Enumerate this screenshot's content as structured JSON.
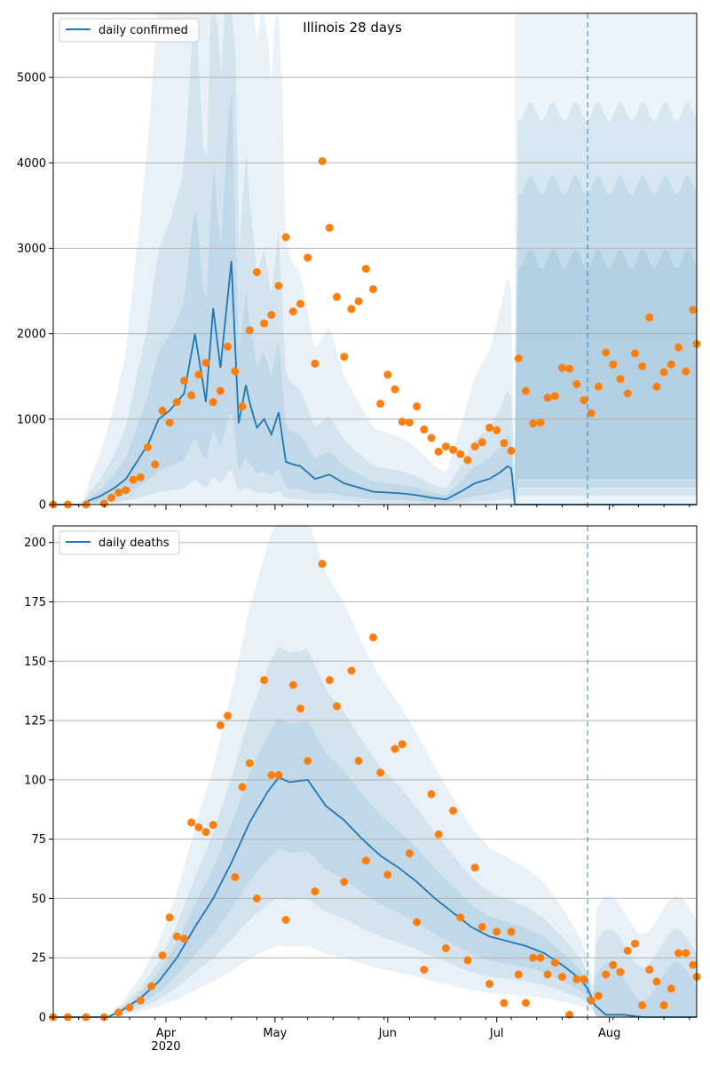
{
  "chart_data": [
    {
      "type": "line",
      "title": "Illinois 28 days",
      "xlabel": "",
      "ylabel": "",
      "legend": {
        "position": "top-left",
        "entries": [
          "daily confirmed"
        ]
      },
      "grid": "y",
      "x_start": "2020-03-01",
      "x_end": "2020-08-25",
      "ylim": [
        0,
        5750
      ],
      "yticks": [
        0,
        1000,
        2000,
        3000,
        4000,
        5000
      ],
      "x_major_ticks": [
        {
          "date": "2020-04-01",
          "label": "Apr",
          "sublabel": "2020"
        },
        {
          "date": "2020-05-01",
          "label": "May"
        },
        {
          "date": "2020-06-01",
          "label": "Jun"
        },
        {
          "date": "2020-07-01",
          "label": "Jul"
        },
        {
          "date": "2020-08-01",
          "label": "Aug"
        }
      ],
      "forecast_start": "2020-07-06",
      "vline_date": "2020-07-26",
      "series": [
        {
          "name": "daily confirmed",
          "kind": "line",
          "color": "#1f77b4",
          "x": [
            "2020-03-01",
            "2020-03-06",
            "2020-03-09",
            "2020-03-11",
            "2020-03-14",
            "2020-03-18",
            "2020-03-21",
            "2020-03-24",
            "2020-03-27",
            "2020-03-30",
            "2020-04-02",
            "2020-04-06",
            "2020-04-09",
            "2020-04-12",
            "2020-04-14",
            "2020-04-16",
            "2020-04-19",
            "2020-04-21",
            "2020-04-23",
            "2020-04-24",
            "2020-04-26",
            "2020-04-28",
            "2020-04-30",
            "2020-05-02",
            "2020-05-04",
            "2020-05-06",
            "2020-05-08",
            "2020-05-12",
            "2020-05-16",
            "2020-05-20",
            "2020-05-24",
            "2020-05-28",
            "2020-06-01",
            "2020-06-05",
            "2020-06-09",
            "2020-06-13",
            "2020-06-17",
            "2020-06-21",
            "2020-06-25",
            "2020-06-29",
            "2020-07-02",
            "2020-07-04",
            "2020-07-05",
            "2020-07-06",
            "2020-07-10",
            "2020-07-20",
            "2020-07-26",
            "2020-08-01",
            "2020-08-10",
            "2020-08-20",
            "2020-08-25"
          ],
          "values": [
            0,
            0,
            0,
            50,
            100,
            200,
            300,
            500,
            700,
            1000,
            1100,
            1300,
            2000,
            1200,
            2300,
            1600,
            2850,
            950,
            1400,
            1200,
            900,
            1000,
            820,
            1080,
            500,
            470,
            450,
            300,
            350,
            250,
            200,
            150,
            140,
            130,
            110,
            80,
            60,
            150,
            250,
            300,
            380,
            450,
            420,
            0,
            0,
            0,
            0,
            0,
            0,
            0,
            0
          ]
        },
        {
          "name": "",
          "kind": "scatter",
          "color": "#ff7f0e",
          "x": [
            "2020-03-01",
            "2020-03-05",
            "2020-03-10",
            "2020-03-15",
            "2020-03-17",
            "2020-03-19",
            "2020-03-21",
            "2020-03-23",
            "2020-03-25",
            "2020-03-27",
            "2020-03-29",
            "2020-03-31",
            "2020-04-02",
            "2020-04-04",
            "2020-04-06",
            "2020-04-08",
            "2020-04-10",
            "2020-04-12",
            "2020-04-14",
            "2020-04-16",
            "2020-04-18",
            "2020-04-20",
            "2020-04-22",
            "2020-04-24",
            "2020-04-26",
            "2020-04-28",
            "2020-04-30",
            "2020-05-02",
            "2020-05-04",
            "2020-05-06",
            "2020-05-08",
            "2020-05-10",
            "2020-05-12",
            "2020-05-14",
            "2020-05-16",
            "2020-05-18",
            "2020-05-20",
            "2020-05-22",
            "2020-05-24",
            "2020-05-26",
            "2020-05-28",
            "2020-05-30",
            "2020-06-01",
            "2020-06-03",
            "2020-06-05",
            "2020-06-07",
            "2020-06-09",
            "2020-06-11",
            "2020-06-13",
            "2020-06-15",
            "2020-06-17",
            "2020-06-19",
            "2020-06-21",
            "2020-06-23",
            "2020-06-25",
            "2020-06-27",
            "2020-06-29",
            "2020-07-01",
            "2020-07-03",
            "2020-07-05",
            "2020-07-07",
            "2020-07-09",
            "2020-07-11",
            "2020-07-13",
            "2020-07-15",
            "2020-07-17",
            "2020-07-19",
            "2020-07-21",
            "2020-07-23",
            "2020-07-25",
            "2020-07-27",
            "2020-07-29",
            "2020-07-31",
            "2020-08-02",
            "2020-08-04",
            "2020-08-06",
            "2020-08-08",
            "2020-08-10",
            "2020-08-12",
            "2020-08-14",
            "2020-08-16",
            "2020-08-18",
            "2020-08-20",
            "2020-08-22",
            "2020-08-24",
            "2020-08-25"
          ],
          "values": [
            0,
            0,
            0,
            10,
            80,
            140,
            170,
            290,
            320,
            670,
            470,
            1100,
            960,
            1200,
            1450,
            1280,
            1520,
            1660,
            1200,
            1330,
            1850,
            1560,
            1150,
            2040,
            2720,
            2120,
            2220,
            2560,
            3130,
            2260,
            2350,
            2890,
            1650,
            4020,
            3240,
            2430,
            1730,
            2290,
            2380,
            2760,
            2520,
            1180,
            1520,
            1350,
            970,
            960,
            1150,
            880,
            780,
            620,
            680,
            640,
            590,
            520,
            680,
            730,
            900,
            870,
            720,
            630,
            1710,
            1330,
            950,
            960,
            1250,
            1270,
            1600,
            1590,
            1410,
            1220,
            1070,
            1380,
            1780,
            1640,
            1470,
            1300,
            1770,
            1620,
            2190,
            1380,
            1550,
            1640,
            1840,
            1560,
            2280,
            1880
          ]
        }
      ]
    },
    {
      "type": "line",
      "title": "",
      "xlabel": "",
      "ylabel": "",
      "legend": {
        "position": "top-left",
        "entries": [
          "daily deaths"
        ]
      },
      "grid": "y",
      "x_start": "2020-03-01",
      "x_end": "2020-08-25",
      "ylim": [
        0,
        207
      ],
      "yticks": [
        0,
        25,
        50,
        75,
        100,
        125,
        150,
        175,
        200
      ],
      "x_major_ticks": [
        {
          "date": "2020-04-01",
          "label": "Apr",
          "sublabel": "2020"
        },
        {
          "date": "2020-05-01",
          "label": "May"
        },
        {
          "date": "2020-06-01",
          "label": "Jun"
        },
        {
          "date": "2020-07-01",
          "label": "Jul"
        },
        {
          "date": "2020-08-01",
          "label": "Aug"
        }
      ],
      "vline_date": "2020-07-26",
      "series": [
        {
          "name": "daily deaths",
          "kind": "line",
          "color": "#1f77b4",
          "x": [
            "2020-03-01",
            "2020-03-16",
            "2020-03-20",
            "2020-03-25",
            "2020-03-30",
            "2020-04-04",
            "2020-04-09",
            "2020-04-14",
            "2020-04-19",
            "2020-04-24",
            "2020-04-29",
            "2020-05-02",
            "2020-05-05",
            "2020-05-10",
            "2020-05-15",
            "2020-05-20",
            "2020-05-25",
            "2020-05-30",
            "2020-06-04",
            "2020-06-09",
            "2020-06-14",
            "2020-06-19",
            "2020-06-24",
            "2020-06-29",
            "2020-07-04",
            "2020-07-09",
            "2020-07-14",
            "2020-07-19",
            "2020-07-24",
            "2020-07-26",
            "2020-07-28",
            "2020-07-31",
            "2020-08-05",
            "2020-08-10",
            "2020-08-20",
            "2020-08-25"
          ],
          "values": [
            0,
            0,
            3,
            8,
            15,
            25,
            38,
            50,
            65,
            82,
            95,
            101,
            99,
            100,
            89,
            83,
            75,
            68,
            63,
            57,
            50,
            44,
            38,
            34,
            32,
            30,
            27,
            22,
            16,
            12,
            5,
            1,
            1,
            0,
            0,
            0
          ]
        },
        {
          "name": "",
          "kind": "scatter",
          "color": "#ff7f0e",
          "x": [
            "2020-03-01",
            "2020-03-05",
            "2020-03-10",
            "2020-03-15",
            "2020-03-19",
            "2020-03-22",
            "2020-03-25",
            "2020-03-28",
            "2020-03-31",
            "2020-04-02",
            "2020-04-04",
            "2020-04-06",
            "2020-04-08",
            "2020-04-10",
            "2020-04-12",
            "2020-04-14",
            "2020-04-16",
            "2020-04-18",
            "2020-04-20",
            "2020-04-22",
            "2020-04-24",
            "2020-04-26",
            "2020-04-28",
            "2020-04-30",
            "2020-05-02",
            "2020-05-04",
            "2020-05-06",
            "2020-05-08",
            "2020-05-10",
            "2020-05-12",
            "2020-05-14",
            "2020-05-16",
            "2020-05-18",
            "2020-05-20",
            "2020-05-22",
            "2020-05-24",
            "2020-05-26",
            "2020-05-28",
            "2020-05-30",
            "2020-06-01",
            "2020-06-03",
            "2020-06-05",
            "2020-06-07",
            "2020-06-09",
            "2020-06-11",
            "2020-06-13",
            "2020-06-15",
            "2020-06-17",
            "2020-06-19",
            "2020-06-21",
            "2020-06-23",
            "2020-06-25",
            "2020-06-27",
            "2020-06-29",
            "2020-07-01",
            "2020-07-03",
            "2020-07-05",
            "2020-07-07",
            "2020-07-09",
            "2020-07-11",
            "2020-07-13",
            "2020-07-15",
            "2020-07-17",
            "2020-07-19",
            "2020-07-21",
            "2020-07-23",
            "2020-07-25",
            "2020-07-27",
            "2020-07-29",
            "2020-07-31",
            "2020-08-02",
            "2020-08-04",
            "2020-08-06",
            "2020-08-08",
            "2020-08-10",
            "2020-08-12",
            "2020-08-14",
            "2020-08-16",
            "2020-08-18",
            "2020-08-20",
            "2020-08-22",
            "2020-08-24",
            "2020-08-25"
          ],
          "values": [
            0,
            0,
            0,
            0,
            2,
            4,
            7,
            13,
            26,
            42,
            34,
            33,
            82,
            80,
            78,
            81,
            123,
            127,
            59,
            97,
            107,
            50,
            142,
            102,
            102,
            41,
            140,
            130,
            108,
            53,
            191,
            142,
            131,
            57,
            146,
            108,
            66,
            160,
            103,
            60,
            113,
            115,
            69,
            40,
            20,
            94,
            77,
            29,
            87,
            42,
            24,
            63,
            38,
            14,
            36,
            6,
            36,
            18,
            6,
            25,
            25,
            18,
            23,
            17,
            1,
            16,
            16,
            7,
            9,
            18,
            22,
            19,
            28,
            31,
            5,
            20,
            15,
            5,
            12,
            27,
            27,
            22,
            17
          ]
        }
      ]
    }
  ]
}
